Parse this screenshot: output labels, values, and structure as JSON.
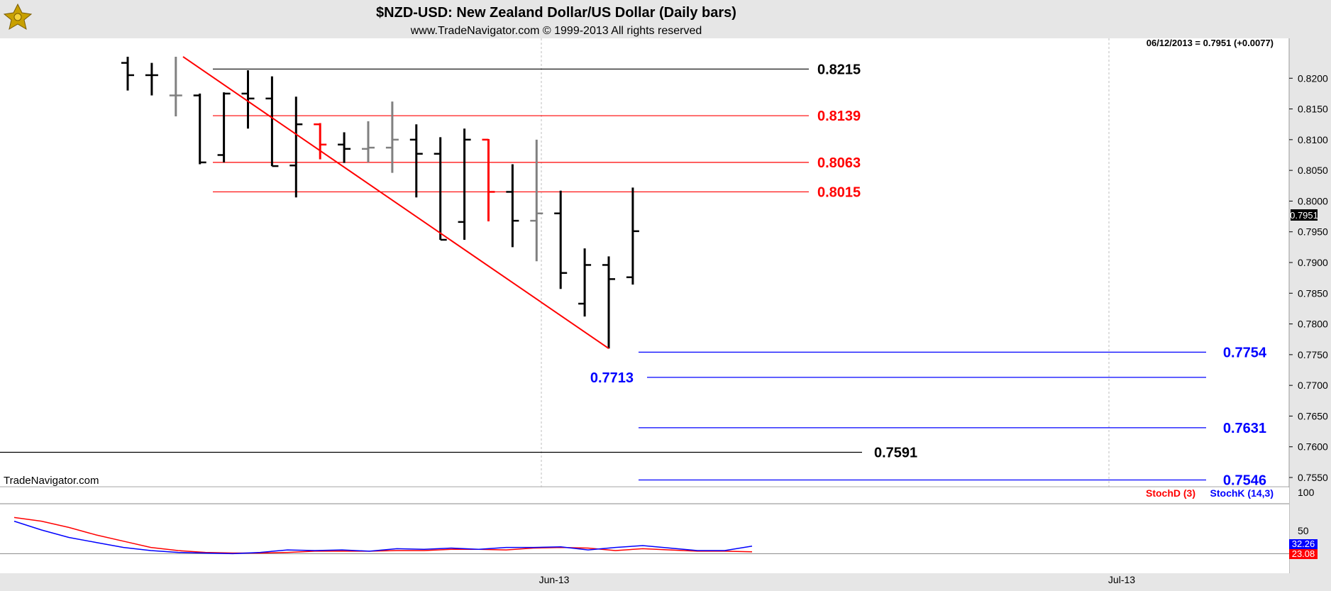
{
  "header": {
    "title": "$NZD-USD:  New Zealand Dollar/US Dollar  (Daily bars)",
    "copyright": "www.TradeNavigator.com © 1999-2013 All rights reserved"
  },
  "watermark": "TradeNavigator.com",
  "price_panel": {
    "readout": "06/12/2013 = 0.7951 (+0.0077)",
    "last_price_label": "0.7951",
    "y_ticks": [
      "0.8200",
      "0.8150",
      "0.8100",
      "0.8050",
      "0.8000",
      "0.7950",
      "0.7900",
      "0.7850",
      "0.7800",
      "0.7750",
      "0.7700",
      "0.7650",
      "0.7600",
      "0.7550"
    ]
  },
  "stoch_panel": {
    "legend_d": "StochD (3)",
    "legend_k": "StochK (14,3)",
    "y_ticks": [
      "100",
      "50"
    ],
    "last_k_label": "32.26",
    "last_d_label": "23.08"
  },
  "x_axis": {
    "ticks": [
      "Jun-13",
      "Jul-13"
    ]
  },
  "colors": {
    "background": "#ffffff",
    "frame": "#e6e6e6",
    "bar_black": "#000000",
    "bar_gray": "#808080",
    "bar_red": "#ff0000",
    "trendline": "#ff0000",
    "fib_blue": "#0000ff",
    "stoch_k": "#0000ff",
    "stoch_d": "#ff0000"
  },
  "chart_data": [
    {
      "type": "ohlc",
      "title": "$NZD-USD:  New Zealand Dollar/US Dollar  (Daily bars)",
      "ylim": [
        0.7535,
        0.8265
      ],
      "x_ticks": [
        "Jun-13",
        "Jul-13"
      ],
      "bars": [
        {
          "o": 0.8225,
          "h": 0.8235,
          "l": 0.818,
          "c": 0.8205,
          "color": "black"
        },
        {
          "o": 0.8205,
          "h": 0.8225,
          "l": 0.8172,
          "c": 0.8205,
          "color": "black"
        },
        {
          "o": 0.8172,
          "h": 0.8235,
          "l": 0.8138,
          "c": 0.8172,
          "color": "gray"
        },
        {
          "o": 0.8172,
          "h": 0.8175,
          "l": 0.806,
          "c": 0.8063,
          "color": "black"
        },
        {
          "o": 0.8075,
          "h": 0.8177,
          "l": 0.8063,
          "c": 0.8175,
          "color": "black"
        },
        {
          "o": 0.8175,
          "h": 0.8213,
          "l": 0.8118,
          "c": 0.8167,
          "color": "black"
        },
        {
          "o": 0.8167,
          "h": 0.8203,
          "l": 0.8057,
          "c": 0.8057,
          "color": "black"
        },
        {
          "o": 0.8058,
          "h": 0.817,
          "l": 0.8006,
          "c": 0.8125,
          "color": "black"
        },
        {
          "o": 0.8125,
          "h": 0.8127,
          "l": 0.8068,
          "c": 0.8092,
          "color": "red"
        },
        {
          "o": 0.8092,
          "h": 0.8112,
          "l": 0.8062,
          "c": 0.8085,
          "color": "black"
        },
        {
          "o": 0.8085,
          "h": 0.813,
          "l": 0.8063,
          "c": 0.8087,
          "color": "gray"
        },
        {
          "o": 0.8087,
          "h": 0.8162,
          "l": 0.8046,
          "c": 0.81,
          "color": "gray"
        },
        {
          "o": 0.81,
          "h": 0.8125,
          "l": 0.8006,
          "c": 0.8077,
          "color": "black"
        },
        {
          "o": 0.8077,
          "h": 0.8104,
          "l": 0.7937,
          "c": 0.7937,
          "color": "black"
        },
        {
          "o": 0.7966,
          "h": 0.8118,
          "l": 0.7937,
          "c": 0.81,
          "color": "black"
        },
        {
          "o": 0.81,
          "h": 0.8101,
          "l": 0.7967,
          "c": 0.8015,
          "color": "red"
        },
        {
          "o": 0.8015,
          "h": 0.806,
          "l": 0.7925,
          "c": 0.7968,
          "color": "black"
        },
        {
          "o": 0.7968,
          "h": 0.81,
          "l": 0.7902,
          "c": 0.798,
          "color": "gray"
        },
        {
          "o": 0.798,
          "h": 0.8017,
          "l": 0.7857,
          "c": 0.7883,
          "color": "black"
        },
        {
          "o": 0.7833,
          "h": 0.7923,
          "l": 0.7812,
          "c": 0.7896,
          "color": "black"
        },
        {
          "o": 0.7896,
          "h": 0.791,
          "l": 0.776,
          "c": 0.7873,
          "color": "black"
        },
        {
          "o": 0.7876,
          "h": 0.8022,
          "l": 0.7864,
          "c": 0.7951,
          "color": "black"
        }
      ],
      "horizontal_levels": [
        {
          "value": 0.8215,
          "label": "0.8215",
          "color": "black"
        },
        {
          "value": 0.8139,
          "label": "0.8139",
          "color": "red"
        },
        {
          "value": 0.8063,
          "label": "0.8063",
          "color": "red"
        },
        {
          "value": 0.8015,
          "label": "0.8015",
          "color": "red"
        },
        {
          "value": 0.7754,
          "label": "0.7754",
          "color": "blue"
        },
        {
          "value": 0.7713,
          "label": "0.7713",
          "color": "blue"
        },
        {
          "value": 0.7631,
          "label": "0.7631",
          "color": "blue"
        },
        {
          "value": 0.7591,
          "label": "0.7591",
          "color": "black"
        },
        {
          "value": 0.7546,
          "label": "0.7546",
          "color": "blue"
        }
      ],
      "trendline": {
        "from_value": 0.8235,
        "to_value": 0.776,
        "from_bar_index": 2.3,
        "to_bar_index": 20
      }
    },
    {
      "type": "line",
      "title": "",
      "ylim": [
        0,
        100
      ],
      "series": [
        {
          "name": "StochD (3)",
          "color": "red",
          "values": [
            78,
            72,
            62,
            50,
            40,
            30,
            25,
            22,
            21,
            21,
            22,
            24,
            24,
            24,
            25,
            25,
            27,
            27,
            26,
            29,
            30,
            29,
            25,
            28,
            26,
            24,
            24,
            23
          ]
        },
        {
          "name": "StochK (14,3)",
          "color": "blue",
          "values": [
            72,
            58,
            46,
            38,
            30,
            25,
            22,
            21,
            20,
            22,
            26,
            25,
            26,
            24,
            28,
            27,
            29,
            27,
            30,
            30,
            31,
            26,
            30,
            33,
            29,
            25,
            25,
            32
          ]
        }
      ]
    }
  ]
}
